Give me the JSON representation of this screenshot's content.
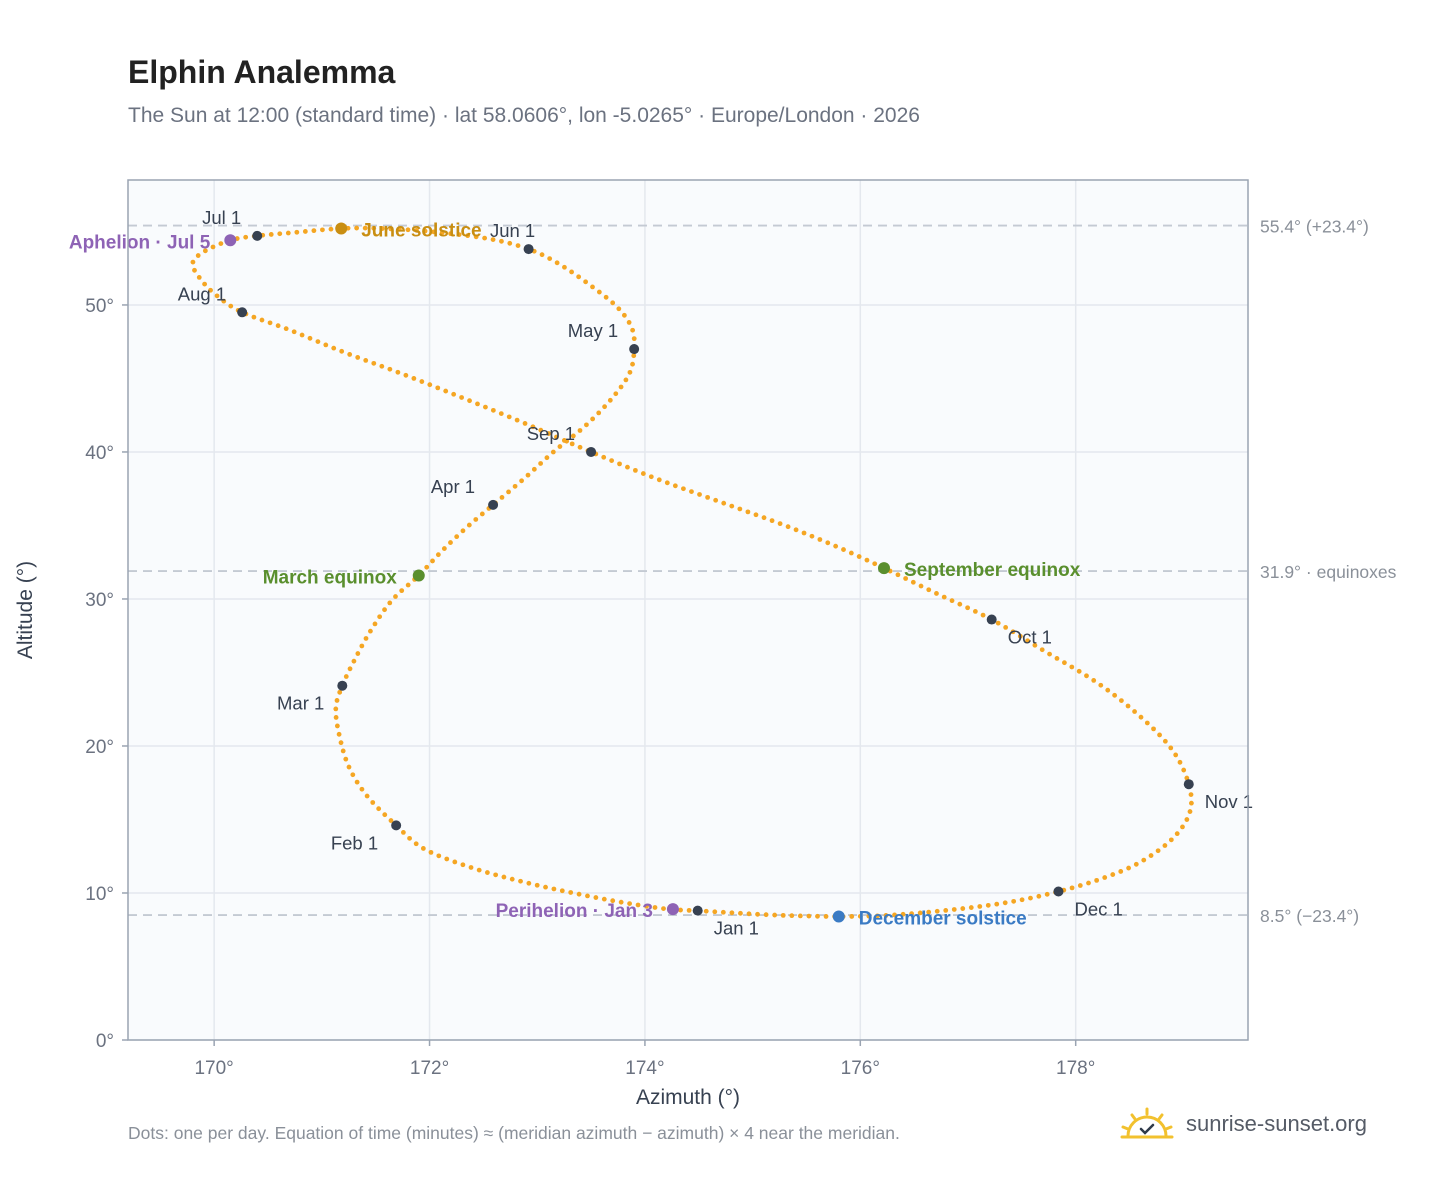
{
  "header": {
    "title": "Elphin Analemma",
    "subtitle": "The Sun at 12:00 (standard time) · lat 58.0606°, lon -5.0265° · Europe/London · 2026"
  },
  "footer": {
    "note": "Dots: one per day. Equation of time (minutes) ≈ (meridian azimuth − azimuth) × 4 near the meridian.",
    "brand": "sunrise-sunset.org",
    "brand_icon": "sun-logo-icon"
  },
  "colors": {
    "curve": "#f5a623",
    "month_marker": "#374151",
    "equinox": "#5a8f2e",
    "june_solstice": "#c98e12",
    "december_solstice": "#3b7bc4",
    "apsis": "#8e63b5",
    "plot_background": "#f9fbfd",
    "grid": "#e4e8ee",
    "reference_line": "#c4cad3"
  },
  "chart_data": {
    "type": "scatter",
    "xlabel": "Azimuth (°)",
    "ylabel": "Altitude (°)",
    "xlim": [
      169.2,
      179.6
    ],
    "ylim": [
      0,
      58.5
    ],
    "x_ticks": [
      170,
      172,
      174,
      176,
      178
    ],
    "x_tick_labels": [
      "170°",
      "172°",
      "174°",
      "176°",
      "178°"
    ],
    "y_ticks": [
      0,
      10,
      20,
      30,
      40,
      50
    ],
    "y_tick_labels": [
      "0°",
      "10°",
      "20°",
      "30°",
      "40°",
      "50°"
    ],
    "grid": true,
    "reference_lines": [
      {
        "y": 55.4,
        "label": "55.4° (+23.4°)"
      },
      {
        "y": 31.9,
        "label": "31.9° · equinoxes"
      },
      {
        "y": 8.5,
        "label": "8.5° (−23.4°)"
      }
    ],
    "month_markers": [
      {
        "label": "Jan 1",
        "x": 174.49,
        "y": 8.8
      },
      {
        "label": "Feb 1",
        "x": 171.69,
        "y": 14.6
      },
      {
        "label": "Mar 1",
        "x": 171.19,
        "y": 24.1
      },
      {
        "label": "Apr 1",
        "x": 172.59,
        "y": 36.4
      },
      {
        "label": "May 1",
        "x": 173.9,
        "y": 47.0
      },
      {
        "label": "Jun 1",
        "x": 172.92,
        "y": 53.8
      },
      {
        "label": "Jul 1",
        "x": 170.4,
        "y": 54.7
      },
      {
        "label": "Aug 1",
        "x": 170.26,
        "y": 49.5
      },
      {
        "label": "Sep 1",
        "x": 173.5,
        "y": 40.0
      },
      {
        "label": "Oct 1",
        "x": 177.22,
        "y": 28.6
      },
      {
        "label": "Nov 1",
        "x": 179.05,
        "y": 17.4
      },
      {
        "label": "Dec 1",
        "x": 177.84,
        "y": 10.1
      }
    ],
    "events": [
      {
        "label": "March equinox",
        "x": 171.9,
        "y": 31.6,
        "kind": "equinox"
      },
      {
        "label": "June solstice",
        "x": 171.18,
        "y": 55.2,
        "kind": "june_solstice"
      },
      {
        "label": "September equinox",
        "x": 176.22,
        "y": 32.1,
        "kind": "equinox"
      },
      {
        "label": "December solstice",
        "x": 175.8,
        "y": 8.4,
        "kind": "december_solstice"
      },
      {
        "label": "Perihelion · Jan 3",
        "x": 174.26,
        "y": 8.9,
        "kind": "apsis"
      },
      {
        "label": "Aphelion · Jul 5",
        "x": 170.15,
        "y": 54.4,
        "kind": "apsis"
      }
    ],
    "daily_path": [
      [
        174.49,
        8.8
      ],
      [
        174.22,
        8.9
      ],
      [
        173.84,
        9.3
      ],
      [
        173.4,
        9.9
      ],
      [
        172.9,
        10.7
      ],
      [
        172.4,
        11.7
      ],
      [
        171.95,
        13.0
      ],
      [
        171.69,
        14.6
      ],
      [
        171.42,
        16.6
      ],
      [
        171.25,
        18.6
      ],
      [
        171.16,
        20.8
      ],
      [
        171.13,
        22.6
      ],
      [
        171.19,
        24.1
      ],
      [
        171.3,
        25.8
      ],
      [
        171.45,
        27.8
      ],
      [
        171.65,
        29.9
      ],
      [
        171.9,
        31.6
      ],
      [
        172.12,
        33.3
      ],
      [
        172.35,
        34.9
      ],
      [
        172.59,
        36.4
      ],
      [
        172.88,
        38.2
      ],
      [
        173.15,
        40.0
      ],
      [
        173.45,
        41.8
      ],
      [
        173.7,
        43.7
      ],
      [
        173.86,
        45.4
      ],
      [
        173.9,
        47.0
      ],
      [
        173.88,
        48.4
      ],
      [
        173.75,
        49.8
      ],
      [
        173.5,
        51.3
      ],
      [
        173.2,
        52.8
      ],
      [
        172.92,
        53.8
      ],
      [
        172.55,
        54.5
      ],
      [
        172.0,
        55.0
      ],
      [
        171.55,
        55.2
      ],
      [
        171.18,
        55.2
      ],
      [
        170.7,
        54.9
      ],
      [
        170.4,
        54.7
      ],
      [
        170.15,
        54.4
      ],
      [
        169.9,
        53.6
      ],
      [
        169.8,
        52.8
      ],
      [
        169.88,
        51.7
      ],
      [
        170.03,
        50.6
      ],
      [
        170.26,
        49.5
      ],
      [
        170.7,
        48.3
      ],
      [
        171.2,
        46.8
      ],
      [
        171.75,
        45.3
      ],
      [
        172.3,
        43.7
      ],
      [
        172.9,
        41.9
      ],
      [
        173.5,
        40.0
      ],
      [
        174.1,
        38.2
      ],
      [
        174.7,
        36.6
      ],
      [
        175.3,
        35.0
      ],
      [
        175.8,
        33.5
      ],
      [
        176.22,
        32.1
      ],
      [
        176.7,
        30.4
      ],
      [
        177.22,
        28.6
      ],
      [
        177.7,
        26.5
      ],
      [
        178.2,
        24.3
      ],
      [
        178.6,
        22.0
      ],
      [
        178.9,
        19.7
      ],
      [
        179.05,
        17.4
      ],
      [
        179.06,
        15.5
      ],
      [
        178.9,
        13.7
      ],
      [
        178.6,
        12.1
      ],
      [
        178.25,
        11.0
      ],
      [
        177.84,
        10.1
      ],
      [
        177.4,
        9.4
      ],
      [
        176.9,
        8.9
      ],
      [
        176.3,
        8.5
      ],
      [
        175.8,
        8.4
      ],
      [
        175.2,
        8.5
      ],
      [
        174.7,
        8.7
      ],
      [
        174.49,
        8.8
      ]
    ]
  }
}
